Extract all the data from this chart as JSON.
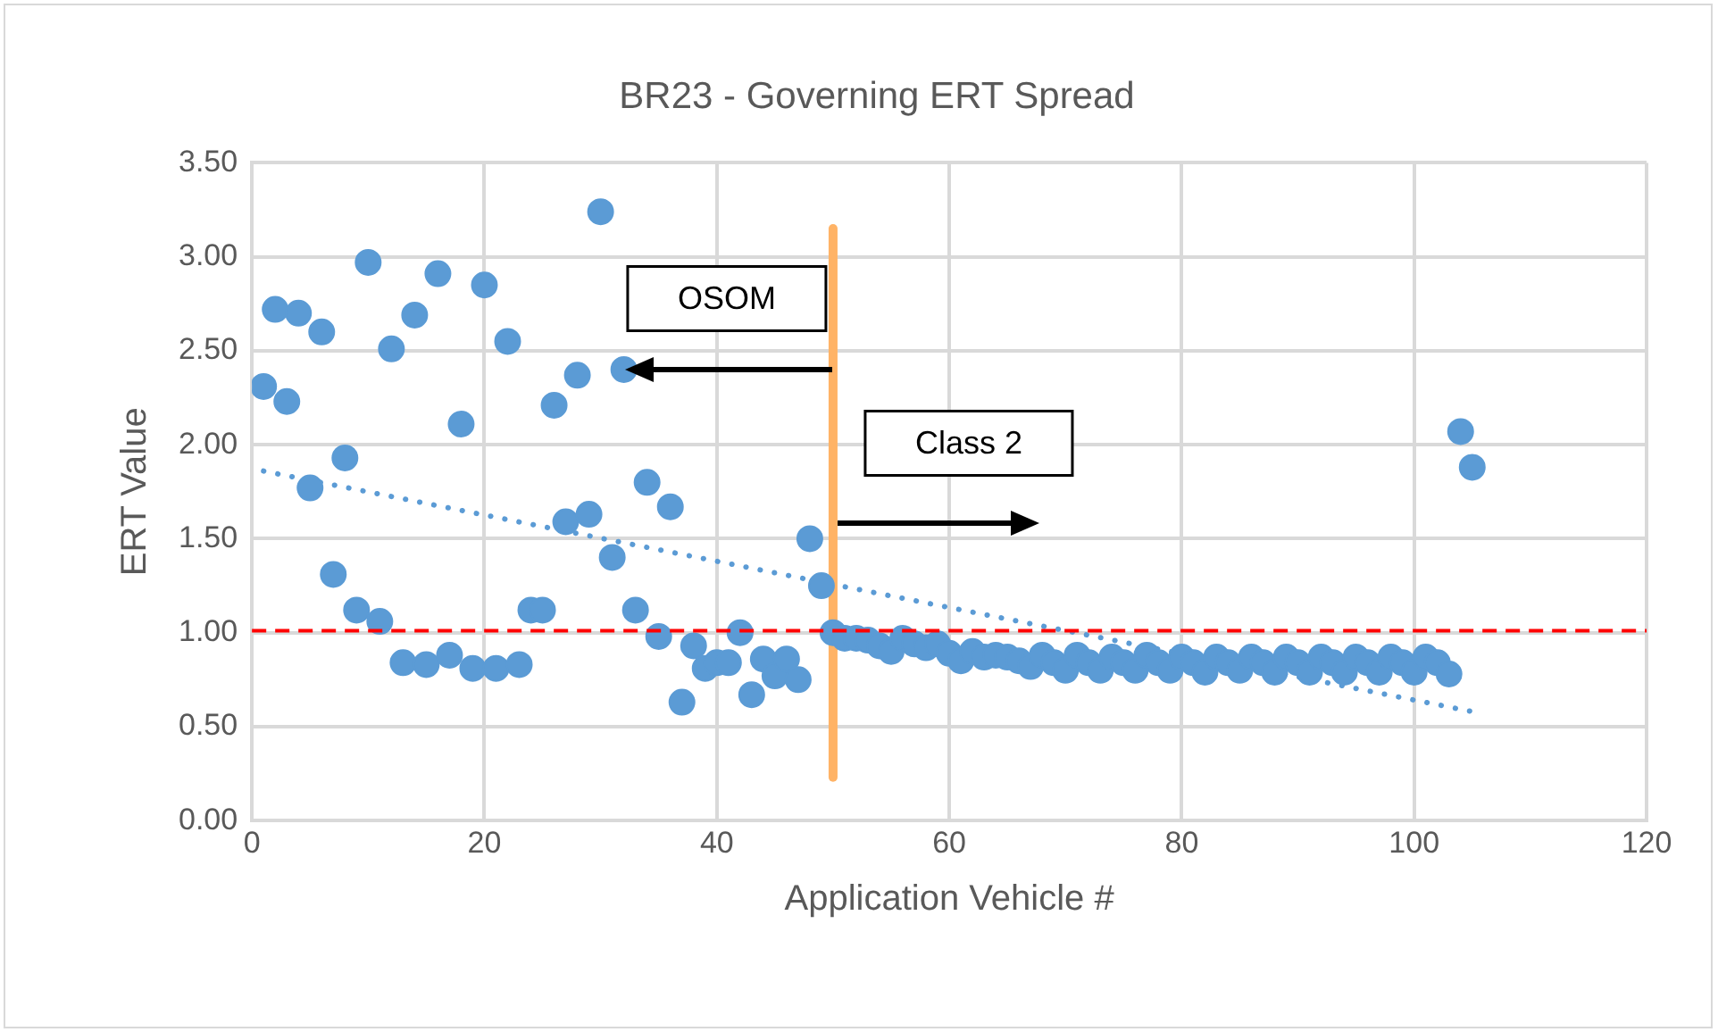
{
  "chart_data": {
    "type": "scatter",
    "title": "BR23 - Governing ERT Spread",
    "xlabel": "Application Vehicle #",
    "ylabel": "ERT Value",
    "xlim": [
      0,
      120
    ],
    "xticks": [
      0,
      20,
      40,
      60,
      80,
      100,
      120
    ],
    "ylim": [
      0,
      3.5
    ],
    "yticks": [
      {
        "value": 0,
        "label": "0.00"
      },
      {
        "value": 0.5,
        "label": "0.50"
      },
      {
        "value": 1,
        "label": "1.00"
      },
      {
        "value": 1.5,
        "label": "1.50"
      },
      {
        "value": 2,
        "label": "2.00"
      },
      {
        "value": 2.5,
        "label": "2.50"
      },
      {
        "value": 3,
        "label": "3.00"
      },
      {
        "value": 3.5,
        "label": "3.50"
      }
    ],
    "grid": true,
    "legend": false,
    "series": [
      {
        "color": "#5b9bd5",
        "marker": "circle",
        "x": [
          1,
          2,
          3,
          4,
          5,
          6,
          7,
          8,
          9,
          10,
          11,
          12,
          13,
          14,
          15,
          16,
          17,
          18,
          19,
          20,
          21,
          22,
          23,
          24,
          25,
          26,
          27,
          28,
          29,
          30,
          31,
          32,
          33,
          34,
          35,
          36,
          37,
          38,
          39,
          40,
          41,
          42,
          43,
          44,
          45,
          46,
          47,
          48,
          49,
          50,
          51,
          52,
          53,
          54,
          55,
          56,
          57,
          58,
          59,
          60,
          61,
          62,
          63,
          64,
          65,
          66,
          67,
          68,
          69,
          70,
          71,
          72,
          73,
          74,
          75,
          76,
          77,
          78,
          79,
          80,
          81,
          82,
          83,
          84,
          85,
          86,
          87,
          88,
          89,
          90,
          91,
          92,
          93,
          94,
          95,
          96,
          97,
          98,
          99,
          100,
          101,
          102,
          103,
          104,
          105
        ],
        "values": [
          2.31,
          2.72,
          2.23,
          2.7,
          1.77,
          2.6,
          1.31,
          1.93,
          1.12,
          2.97,
          1.06,
          2.51,
          0.84,
          2.69,
          0.83,
          2.91,
          0.88,
          2.11,
          0.81,
          2.85,
          0.81,
          2.55,
          0.83,
          1.12,
          1.12,
          2.21,
          1.59,
          2.37,
          1.63,
          3.24,
          1.4,
          2.4,
          1.12,
          1.8,
          0.98,
          1.67,
          0.63,
          0.93,
          0.81,
          0.84,
          0.84,
          1.0,
          0.67,
          0.86,
          0.77,
          0.86,
          0.75,
          1.5,
          1.25,
          1.0,
          0.97,
          0.97,
          0.96,
          0.93,
          0.9,
          0.97,
          0.94,
          0.92,
          0.94,
          0.89,
          0.85,
          0.9,
          0.87,
          0.88,
          0.87,
          0.85,
          0.82,
          0.88,
          0.84,
          0.8,
          0.88,
          0.84,
          0.8,
          0.87,
          0.84,
          0.8,
          0.88,
          0.84,
          0.8,
          0.87,
          0.84,
          0.79,
          0.87,
          0.84,
          0.8,
          0.87,
          0.84,
          0.79,
          0.87,
          0.84,
          0.79,
          0.87,
          0.84,
          0.79,
          0.87,
          0.84,
          0.79,
          0.87,
          0.84,
          0.79,
          0.87,
          0.84,
          0.78,
          2.07,
          1.88
        ]
      },
      {
        "type": "line",
        "color": "#5b9bd5",
        "marker": "none",
        "line_style": "dotted",
        "x": [
          1,
          105
        ],
        "values": [
          1.86,
          0.58
        ]
      },
      {
        "type": "line",
        "color": "#ffb366",
        "marker": "none",
        "line_style": "solid",
        "x": [
          50,
          50
        ],
        "values": [
          0.23,
          3.15
        ]
      }
    ],
    "ref_lines": [
      {
        "axis": "y",
        "value": 1.01,
        "color": "#ff0000",
        "line_style": "dashed"
      }
    ],
    "annotations": [
      "OSOM",
      "Class 2"
    ]
  }
}
